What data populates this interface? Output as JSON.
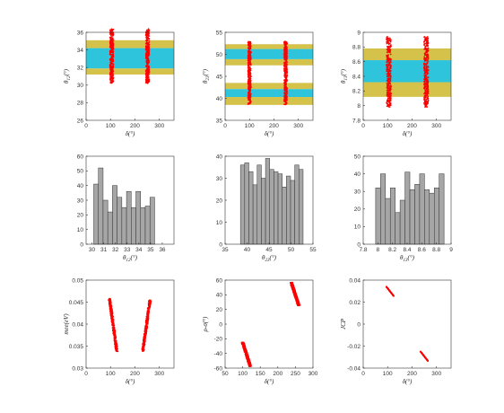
{
  "colors": {
    "points": "#ff0000",
    "inner_band": "#2ec4dc",
    "outer_band": "#d4c24a",
    "bars": "#a6a6a6",
    "bar_edge": "#333333",
    "axis": "#333333"
  },
  "chart_data": [
    {
      "type": "scatter",
      "xlabel": "δ(°)",
      "ylabel": "θ12(°)",
      "xlim": [
        0,
        360
      ],
      "ylim": [
        26,
        36
      ],
      "xticks": [
        "0",
        "100",
        "200",
        "300"
      ],
      "yticks": [
        "26",
        "28",
        "30",
        "32",
        "34",
        "36"
      ],
      "bands": {
        "inner": [
          [
            31.9,
            34.2
          ]
        ],
        "outer": [
          [
            31.2,
            31.9
          ],
          [
            34.2,
            35.1
          ]
        ]
      },
      "clusters": [
        {
          "x_center": 105,
          "x_spread": 7,
          "y_range": [
            30.2,
            36.4
          ]
        },
        {
          "x_center": 252,
          "x_spread": 7,
          "y_range": [
            30.2,
            36.4
          ]
        }
      ]
    },
    {
      "type": "scatter",
      "xlabel": "δ(°)",
      "ylabel": "θ23(°)",
      "xlim": [
        0,
        360
      ],
      "ylim": [
        35,
        55
      ],
      "xticks": [
        "0",
        "100",
        "200",
        "300"
      ],
      "yticks": [
        "35",
        "40",
        "45",
        "50",
        "55"
      ],
      "bands": {
        "inner": [
          [
            40.3,
            42.1
          ],
          [
            48.9,
            51.2
          ]
        ],
        "outer": [
          [
            38.5,
            40.3
          ],
          [
            42.1,
            43.5
          ],
          [
            47.5,
            48.9
          ],
          [
            51.2,
            52.3
          ]
        ]
      },
      "clusters": [
        {
          "x_center": 100,
          "x_spread": 6,
          "y_range": [
            38.6,
            52.9
          ],
          "slope": 0.9
        },
        {
          "x_center": 248,
          "x_spread": 6,
          "y_range": [
            38.6,
            53.0
          ],
          "slope": 0.9
        }
      ]
    },
    {
      "type": "scatter",
      "xlabel": "δ(°)",
      "ylabel": "θ13(°)",
      "xlim": [
        0,
        360
      ],
      "ylim": [
        7.8,
        9.0
      ],
      "xticks": [
        "0",
        "100",
        "200",
        "300"
      ],
      "yticks": [
        "7.8",
        "8",
        "8.2",
        "8.4",
        "8.6",
        "8.8",
        "9"
      ],
      "bands": {
        "inner": [
          [
            8.32,
            8.62
          ]
        ],
        "outer": [
          [
            8.12,
            8.32
          ],
          [
            8.62,
            8.78
          ]
        ]
      },
      "clusters": [
        {
          "x_center": 105,
          "x_spread": 9,
          "y_range": [
            7.98,
            8.94
          ]
        },
        {
          "x_center": 258,
          "x_spread": 9,
          "y_range": [
            7.98,
            8.94
          ]
        }
      ]
    },
    {
      "type": "bar",
      "xlabel": "θ12(°)",
      "ylabel": "",
      "xlim": [
        29.5,
        37
      ],
      "ylim": [
        0,
        60
      ],
      "xticks": [
        "30",
        "31",
        "32",
        "33",
        "34",
        "35",
        "36"
      ],
      "yticks": [
        "0",
        "10",
        "20",
        "30",
        "40",
        "50",
        "60"
      ],
      "bin_start": 30.15,
      "bin_width": 0.4,
      "values": [
        41,
        52,
        30,
        22,
        40,
        32,
        25,
        36,
        25,
        36,
        25,
        26,
        32
      ]
    },
    {
      "type": "bar",
      "xlabel": "θ23(°)",
      "ylabel": "",
      "xlim": [
        35,
        55
      ],
      "ylim": [
        0,
        40
      ],
      "xticks": [
        "35",
        "40",
        "45",
        "50",
        "55"
      ],
      "yticks": [
        "0",
        "10",
        "20",
        "30",
        "40"
      ],
      "bin_start": 38.5,
      "bin_width": 0.95,
      "values": [
        36,
        37,
        33,
        27,
        36,
        30,
        39,
        34,
        33,
        32,
        26,
        31,
        29,
        36,
        34
      ]
    },
    {
      "type": "bar",
      "xlabel": "θ13(°)",
      "ylabel": "",
      "xlim": [
        7.8,
        9.0
      ],
      "ylim": [
        0,
        50
      ],
      "xticks": [
        "7.8",
        "8",
        "8.2",
        "8.4",
        "8.6",
        "8.8",
        "9"
      ],
      "yticks": [
        "0",
        "10",
        "20",
        "30",
        "40",
        "50"
      ],
      "bin_start": 7.97,
      "bin_width": 0.0667,
      "values": [
        32,
        40,
        26,
        32,
        18,
        25,
        41,
        31,
        34,
        40,
        31,
        29,
        32,
        40
      ]
    },
    {
      "type": "scatter",
      "xlabel": "δ(°)",
      "ylabel": "mee(eV)",
      "xlim": [
        0,
        360
      ],
      "ylim": [
        0.03,
        0.05
      ],
      "xticks": [
        "0",
        "100",
        "200",
        "300"
      ],
      "yticks": [
        "0.03",
        "0.035",
        "0.04",
        "0.045",
        "0.05"
      ],
      "clusters": [
        {
          "x_start": 96,
          "x_end": 126,
          "y_top": 0.0458,
          "y_bottom": 0.0338,
          "width": 9
        },
        {
          "x_start": 262,
          "x_end": 232,
          "y_top": 0.0455,
          "y_bottom": 0.0338,
          "width": 9
        }
      ]
    },
    {
      "type": "scatter",
      "xlabel": "δ(°)",
      "ylabel": "ρ-σ(°)",
      "xlim": [
        50,
        300
      ],
      "ylim": [
        -60,
        60
      ],
      "xticks": [
        "50",
        "100",
        "150",
        "200",
        "250",
        "300"
      ],
      "yticks": [
        "-60",
        "-40",
        "-20",
        "0",
        "20",
        "40",
        "60"
      ],
      "clusters": [
        {
          "x_start": 100,
          "x_end": 122,
          "y_top": -25,
          "y_bottom": -58,
          "width": 7
        },
        {
          "x_start": 238,
          "x_end": 260,
          "y_top": 57,
          "y_bottom": 25,
          "width": 7
        }
      ]
    },
    {
      "type": "scatter",
      "xlabel": "δ(°)",
      "ylabel": "JCP",
      "xlim": [
        0,
        360
      ],
      "ylim": [
        -0.04,
        0.04
      ],
      "xticks": [
        "0",
        "100",
        "200",
        "300"
      ],
      "yticks": [
        "-0.04",
        "-0.02",
        "0",
        "0.02",
        "0.04"
      ],
      "clusters": [
        {
          "x_start": 95,
          "x_end": 125,
          "y_top": 0.034,
          "y_bottom": 0.0255,
          "width": 0.0035
        },
        {
          "x_start": 235,
          "x_end": 265,
          "y_top": -0.025,
          "y_bottom": -0.0335,
          "width": 0.0035
        }
      ]
    }
  ]
}
